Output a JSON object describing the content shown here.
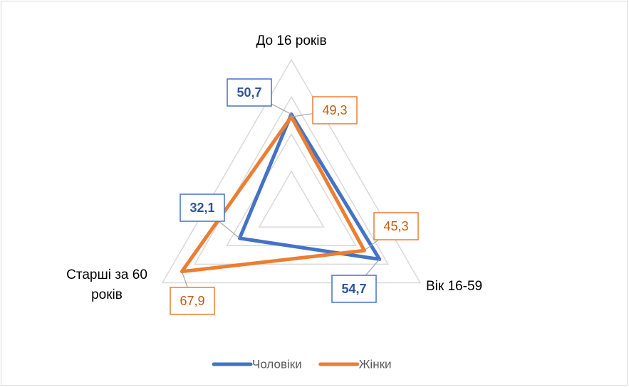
{
  "chart_data": {
    "type": "radar",
    "categories": [
      "До 16 років",
      "Вік 16-59",
      "Старші за 60 років"
    ],
    "series": [
      {
        "name": "Чоловіки",
        "color": "#4472c4",
        "values": [
          50.7,
          54.7,
          32.1
        ],
        "value_labels": [
          "50,7",
          "54,7",
          "32,1"
        ]
      },
      {
        "name": "Жінки",
        "color": "#ed7d31",
        "values": [
          49.3,
          45.3,
          67.9
        ],
        "value_labels": [
          "49,3",
          "45,3",
          "67,9"
        ]
      }
    ],
    "ylim": [
      0,
      80
    ],
    "yticks": [
      0,
      20,
      40,
      60,
      80
    ],
    "grid": true,
    "legend": "bottom"
  }
}
